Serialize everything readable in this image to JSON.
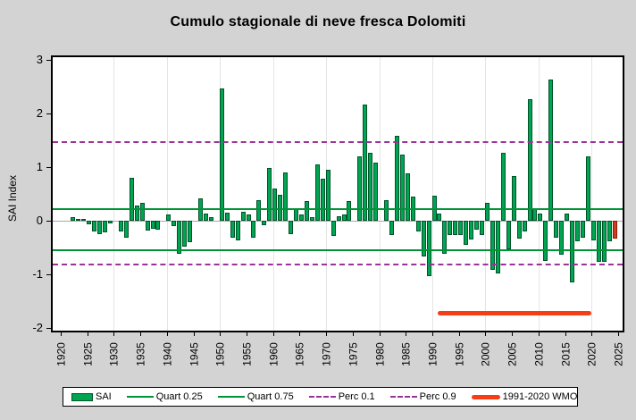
{
  "title": "Cumulo stagionale di neve fresca Dolomiti",
  "colors": {
    "background": "#D3D3D3",
    "plot_background": "#FFFFFF",
    "bar_fill": "#00A551",
    "bar_border": "#00522A",
    "highlight_bar_fill": "#D63A1E",
    "highlight_bar_border": "#8A1C06",
    "quart_line": "#009437",
    "perc_line": "#993399",
    "wmo_line": "#F63D14",
    "zero_line": "#A8A8A8",
    "gridline": "#E4E4E4"
  },
  "legend": {
    "items": [
      {
        "label": "SAI",
        "swatch": "bar"
      },
      {
        "label": "Quart 0.25",
        "swatch": "line"
      },
      {
        "label": "Quart 0.75",
        "swatch": "line"
      },
      {
        "label": "Perc 0.1",
        "swatch": "dash"
      },
      {
        "label": "Perc 0.9",
        "swatch": "dash"
      },
      {
        "label": "1991-2020 WMO",
        "swatch": "thick"
      }
    ]
  },
  "chart_data": {
    "type": "bar",
    "title": "Cumulo stagionale di neve fresca Dolomiti",
    "xlabel": "",
    "ylabel": "SAI Index",
    "ylim": [
      -2,
      3
    ],
    "y_ticks": [
      "3",
      "2",
      "1",
      "0",
      "-1",
      "-2"
    ],
    "y_tick_values": [
      3,
      2,
      1,
      0,
      -1,
      -2
    ],
    "x_ticks": [
      "1920",
      "1925",
      "1930",
      "1935",
      "1940",
      "1945",
      "1950",
      "1955",
      "1960",
      "1965",
      "1970",
      "1975",
      "1980",
      "1985",
      "1990",
      "1995",
      "2000",
      "2005",
      "2010",
      "2015",
      "2020",
      "2025"
    ],
    "x_tick_values": [
      1920,
      1925,
      1930,
      1935,
      1940,
      1945,
      1950,
      1955,
      1960,
      1965,
      1970,
      1975,
      1980,
      1985,
      1990,
      1995,
      2000,
      2005,
      2010,
      2015,
      2020,
      2025
    ],
    "grid_years": [
      1930,
      1940,
      1950,
      1960,
      1970,
      1980,
      1990,
      2000,
      2010,
      2020
    ],
    "legend_position": "bottom",
    "series_name": "SAI",
    "bars": [
      {
        "year": 1922,
        "value": 0.06
      },
      {
        "year": 1923,
        "value": 0.03
      },
      {
        "year": 1924,
        "value": 0.04
      },
      {
        "year": 1925,
        "value": -0.07
      },
      {
        "year": 1926,
        "value": -0.2
      },
      {
        "year": 1927,
        "value": -0.25
      },
      {
        "year": 1928,
        "value": -0.22
      },
      {
        "year": 1929,
        "value": -0.05
      },
      {
        "year": 1931,
        "value": -0.2
      },
      {
        "year": 1932,
        "value": -0.32
      },
      {
        "year": 1933,
        "value": 0.8
      },
      {
        "year": 1934,
        "value": 0.28
      },
      {
        "year": 1935,
        "value": 0.33
      },
      {
        "year": 1936,
        "value": -0.18
      },
      {
        "year": 1937,
        "value": -0.15
      },
      {
        "year": 1938,
        "value": -0.17
      },
      {
        "year": 1940,
        "value": 0.12
      },
      {
        "year": 1941,
        "value": -0.1
      },
      {
        "year": 1942,
        "value": -0.62
      },
      {
        "year": 1943,
        "value": -0.48
      },
      {
        "year": 1944,
        "value": -0.4
      },
      {
        "year": 1946,
        "value": 0.41
      },
      {
        "year": 1947,
        "value": 0.13
      },
      {
        "year": 1948,
        "value": 0.07
      },
      {
        "year": 1950,
        "value": 2.47
      },
      {
        "year": 1951,
        "value": 0.15
      },
      {
        "year": 1952,
        "value": -0.31
      },
      {
        "year": 1953,
        "value": -0.37
      },
      {
        "year": 1954,
        "value": 0.16
      },
      {
        "year": 1955,
        "value": 0.12
      },
      {
        "year": 1956,
        "value": -0.31
      },
      {
        "year": 1957,
        "value": 0.38
      },
      {
        "year": 1958,
        "value": -0.09
      },
      {
        "year": 1959,
        "value": 0.98
      },
      {
        "year": 1960,
        "value": 0.6
      },
      {
        "year": 1961,
        "value": 0.49
      },
      {
        "year": 1962,
        "value": 0.9
      },
      {
        "year": 1963,
        "value": -0.25
      },
      {
        "year": 1964,
        "value": 0.22
      },
      {
        "year": 1965,
        "value": 0.12
      },
      {
        "year": 1966,
        "value": 0.36
      },
      {
        "year": 1967,
        "value": 0.06
      },
      {
        "year": 1968,
        "value": 1.05
      },
      {
        "year": 1969,
        "value": 0.78
      },
      {
        "year": 1970,
        "value": 0.95
      },
      {
        "year": 1971,
        "value": -0.28
      },
      {
        "year": 1972,
        "value": 0.08
      },
      {
        "year": 1973,
        "value": 0.12
      },
      {
        "year": 1974,
        "value": 0.37
      },
      {
        "year": 1976,
        "value": 1.2
      },
      {
        "year": 1977,
        "value": 2.16
      },
      {
        "year": 1978,
        "value": 1.27
      },
      {
        "year": 1979,
        "value": 1.08
      },
      {
        "year": 1981,
        "value": 0.38
      },
      {
        "year": 1982,
        "value": -0.26
      },
      {
        "year": 1983,
        "value": 1.58
      },
      {
        "year": 1984,
        "value": 1.23
      },
      {
        "year": 1985,
        "value": 0.89
      },
      {
        "year": 1986,
        "value": 0.45
      },
      {
        "year": 1987,
        "value": -0.2
      },
      {
        "year": 1988,
        "value": -0.67
      },
      {
        "year": 1989,
        "value": -1.03
      },
      {
        "year": 1990,
        "value": 0.46
      },
      {
        "year": 1991,
        "value": 0.13
      },
      {
        "year": 1992,
        "value": -0.62
      },
      {
        "year": 1993,
        "value": -0.27
      },
      {
        "year": 1994,
        "value": -0.27
      },
      {
        "year": 1995,
        "value": -0.27
      },
      {
        "year": 1996,
        "value": -0.45
      },
      {
        "year": 1997,
        "value": -0.35
      },
      {
        "year": 1998,
        "value": -0.17
      },
      {
        "year": 1999,
        "value": -0.27
      },
      {
        "year": 2000,
        "value": 0.34
      },
      {
        "year": 2001,
        "value": -0.92
      },
      {
        "year": 2002,
        "value": -0.98
      },
      {
        "year": 2003,
        "value": 1.26
      },
      {
        "year": 2004,
        "value": -0.53
      },
      {
        "year": 2005,
        "value": 0.83
      },
      {
        "year": 2006,
        "value": -0.34
      },
      {
        "year": 2007,
        "value": -0.2
      },
      {
        "year": 2008,
        "value": 2.27
      },
      {
        "year": 2009,
        "value": 0.22
      },
      {
        "year": 2010,
        "value": 0.13
      },
      {
        "year": 2011,
        "value": -0.75
      },
      {
        "year": 2012,
        "value": 2.63
      },
      {
        "year": 2013,
        "value": -0.31
      },
      {
        "year": 2014,
        "value": -0.64
      },
      {
        "year": 2015,
        "value": 0.13
      },
      {
        "year": 2016,
        "value": -1.15
      },
      {
        "year": 2017,
        "value": -0.39
      },
      {
        "year": 2018,
        "value": -0.31
      },
      {
        "year": 2019,
        "value": 1.2
      },
      {
        "year": 2020,
        "value": -0.36
      },
      {
        "year": 2021,
        "value": -0.77
      },
      {
        "year": 2022,
        "value": -0.77
      },
      {
        "year": 2023,
        "value": -0.39
      }
    ],
    "highlight_bar": {
      "year": 2024,
      "value": -0.34,
      "note": "current season drawn in red"
    },
    "reference_lines": [
      {
        "name": "Quart 0.75",
        "value": 0.22,
        "style": "solid"
      },
      {
        "name": "Quart 0.25",
        "value": -0.55,
        "style": "solid"
      },
      {
        "name": "Perc 0.9",
        "value": 1.47,
        "style": "dashed"
      },
      {
        "name": "Perc 0.1",
        "value": -0.82,
        "style": "dashed"
      }
    ],
    "wmo_reference": {
      "label": "1991-2020 WMO",
      "start_year": 1991,
      "end_year": 2020,
      "value": -1.72
    }
  }
}
